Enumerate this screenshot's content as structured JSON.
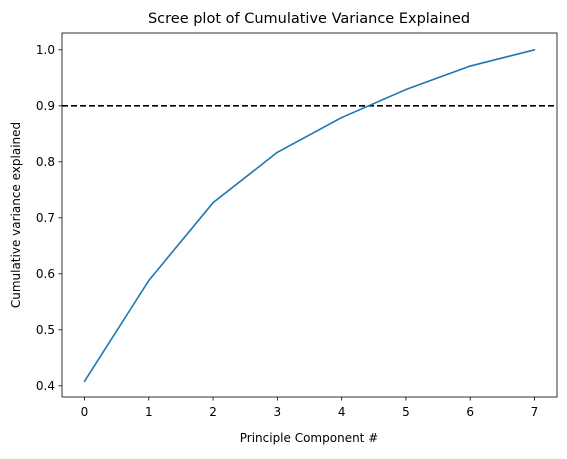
{
  "chart_data": {
    "type": "line",
    "title": "Scree plot of Cumulative Variance Explained",
    "xlabel": "Principle Component #",
    "ylabel": "Cumulative variance explained",
    "x": [
      0,
      1,
      2,
      3,
      4,
      5,
      6,
      7
    ],
    "series": [
      {
        "values": [
          0.408,
          0.588,
          0.727,
          0.817,
          0.879,
          0.929,
          0.971,
          1.0
        ]
      }
    ],
    "reference_line": {
      "orientation": "horizontal",
      "y": 0.9,
      "style": "dashed",
      "color": "#000000"
    },
    "xlim": [
      -0.35,
      7.35
    ],
    "ylim": [
      0.38,
      1.03
    ],
    "xticks": [
      "0",
      "1",
      "2",
      "3",
      "4",
      "5",
      "6",
      "7"
    ],
    "yticks": [
      "0.4",
      "0.5",
      "0.6",
      "0.7",
      "0.8",
      "0.9",
      "1.0"
    ],
    "grid": false,
    "line_color": "#1f77b4"
  }
}
